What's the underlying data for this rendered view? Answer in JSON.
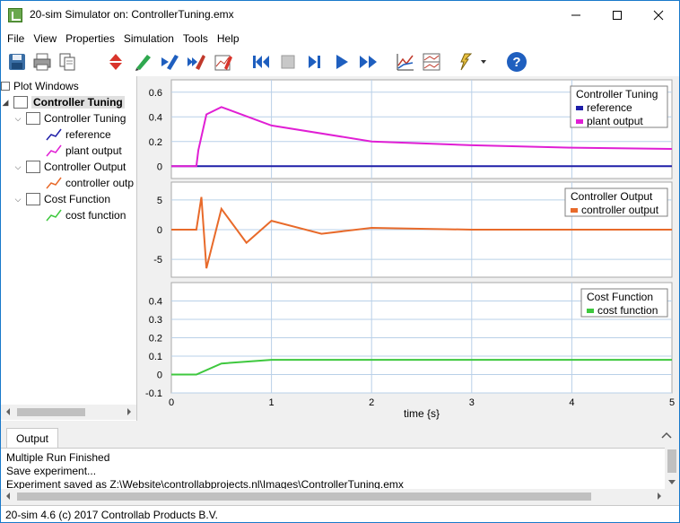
{
  "window": {
    "title": "20-sim Simulator on: ControllerTuning.emx",
    "minimize_icon": "minimize-icon",
    "maximize_icon": "maximize-icon",
    "close_icon": "close-icon"
  },
  "menu": [
    "File",
    "View",
    "Properties",
    "Simulation",
    "Tools",
    "Help"
  ],
  "toolbar_icons": [
    "save-icon",
    "print-icon",
    "copy-icon",
    "parameters-icon",
    "pencil-green-icon",
    "pencil-blue-icon",
    "pencil-multi-icon",
    "edit-plot-icon",
    "skip-back-icon",
    "stop-icon",
    "step-icon",
    "run-icon",
    "run-multiple-icon",
    "plot-icon",
    "plot-properties-icon",
    "tools-dropdown-icon",
    "help-icon"
  ],
  "tree": {
    "root": "Plot Windows",
    "window": "Controller Tuning",
    "plots": [
      {
        "name": "Controller Tuning",
        "curves": [
          "reference",
          "plant output"
        ]
      },
      {
        "name": "Controller Output",
        "curves": [
          "controller outp"
        ]
      },
      {
        "name": "Cost Function",
        "curves": [
          "cost function"
        ]
      }
    ]
  },
  "output": {
    "tab": "Output",
    "lines": [
      "Multiple Run Finished",
      "Save experiment...",
      "Experiment saved as Z:\\Website\\controllabprojects.nl\\Images\\ControllerTuning.emx"
    ]
  },
  "status": "20-sim 4.6 (c) 2017 Controllab Products B.V.",
  "colors": {
    "reference": "#1f1fa8",
    "plant_output": "#e01fd4",
    "controller_output": "#e86a2a",
    "cost_function": "#3ec83e",
    "grid": "#b9d0e8"
  },
  "chart_data": [
    {
      "type": "line",
      "title": "Controller Tuning",
      "legend": [
        "reference",
        "plant output"
      ],
      "legend_position": "top-right",
      "xlim": [
        0,
        5
      ],
      "ylim": [
        -0.1,
        0.7
      ],
      "yticks": [
        "0.6",
        "0.4",
        "0.2",
        "0"
      ],
      "x": [
        0,
        0.25,
        0.27,
        0.35,
        0.5,
        1.0,
        2.0,
        3.0,
        4.0,
        5.0
      ],
      "series": [
        {
          "name": "reference",
          "values": [
            0,
            0,
            0,
            0,
            0,
            0,
            0,
            0,
            0,
            0
          ]
        },
        {
          "name": "plant output",
          "values": [
            0,
            0,
            0.13,
            0.42,
            0.48,
            0.33,
            0.2,
            0.17,
            0.15,
            0.14
          ]
        }
      ]
    },
    {
      "type": "line",
      "title": "Controller Output",
      "legend": [
        "controller output"
      ],
      "legend_position": "top-right",
      "xlim": [
        0,
        5
      ],
      "ylim": [
        -8,
        8
      ],
      "yticks": [
        "5",
        "0",
        "-5"
      ],
      "x": [
        0,
        0.25,
        0.3,
        0.35,
        0.5,
        0.75,
        1.0,
        1.5,
        2.0,
        3.0,
        5.0
      ],
      "series": [
        {
          "name": "controller output",
          "values": [
            0,
            0,
            5.5,
            -6.5,
            3.5,
            -2.2,
            1.5,
            -0.7,
            0.3,
            0,
            0
          ]
        }
      ]
    },
    {
      "type": "line",
      "title": "Cost Function",
      "legend": [
        "cost function"
      ],
      "legend_position": "top-right",
      "xlabel": "time {s}",
      "xlim": [
        0,
        5
      ],
      "ylim": [
        -0.1,
        0.5
      ],
      "xticks": [
        "0",
        "1",
        "2",
        "3",
        "4",
        "5"
      ],
      "yticks": [
        "0.4",
        "0.3",
        "0.2",
        "0.1",
        "0",
        "-0.1"
      ],
      "x": [
        0,
        0.25,
        0.5,
        1.0,
        2.0,
        3.0,
        4.0,
        5.0
      ],
      "series": [
        {
          "name": "cost function",
          "values": [
            0,
            0,
            0.06,
            0.08,
            0.08,
            0.08,
            0.08,
            0.08
          ]
        }
      ]
    }
  ]
}
